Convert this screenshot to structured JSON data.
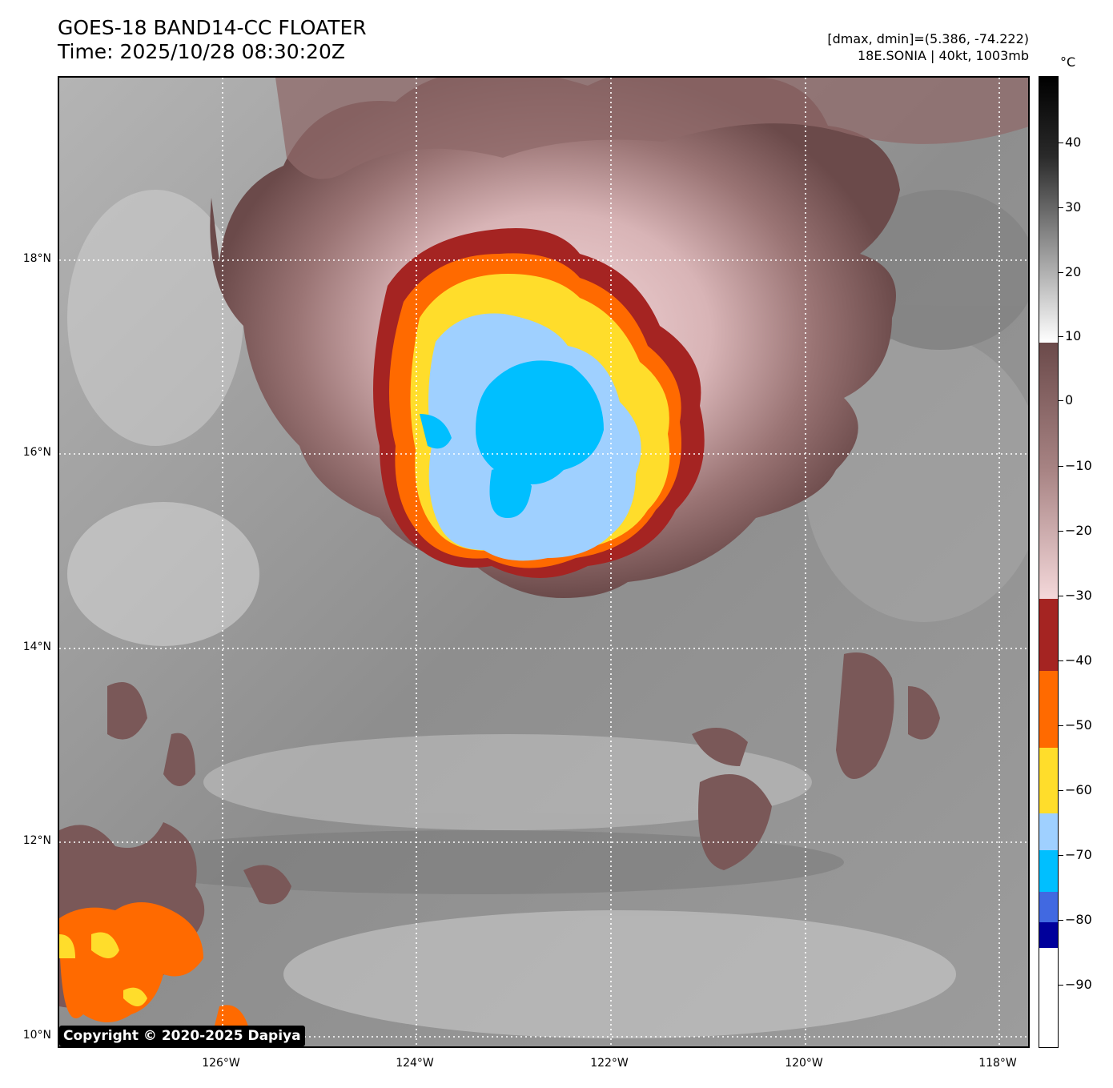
{
  "header": {
    "title_line1": "GOES-18 BAND14-CC FLOATER",
    "title_line2": "Time: 2025/10/28 08:30:20Z",
    "dmax_dmin": "[dmax, dmin]=(5.386, -74.222)",
    "storm_info": "18E.SONIA | 40kt, 1003mb"
  },
  "map": {
    "lat_labels": [
      "18°N",
      "16°N",
      "14°N",
      "12°N",
      "10°N"
    ],
    "lon_labels": [
      "126°W",
      "124°W",
      "122°W",
      "120°W",
      "118°W"
    ],
    "copyright": "Copyright © 2020-2025 Dapiya"
  },
  "colorbar": {
    "unit": "°C",
    "tick_labels": [
      "40",
      "30",
      "20",
      "10",
      "0",
      "−10",
      "−20",
      "−30",
      "−40",
      "−50",
      "−60",
      "−70",
      "−80",
      "−90"
    ],
    "colors": {
      "black": "#000000",
      "white": "#ffffff",
      "warm_brown": "#6b4a4a",
      "pink": "#f4d8da",
      "red": "#a52422",
      "orange": "#ff6a00",
      "yellow": "#ffdd2b",
      "light_blue": "#9fd0ff",
      "cyan": "#00bfff",
      "royal_blue": "#4169e1",
      "navy": "#00009b"
    }
  }
}
